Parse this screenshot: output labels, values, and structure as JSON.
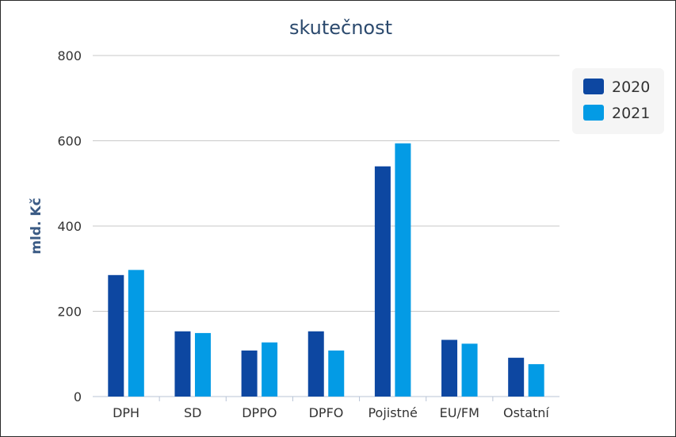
{
  "chart_data": {
    "type": "bar",
    "title": "skutečnost",
    "xlabel": "",
    "ylabel": "mld. Kč",
    "ylim": [
      0,
      800
    ],
    "yticks": [
      0,
      200,
      400,
      600,
      800
    ],
    "grid": true,
    "legend_position": "top-right",
    "categories": [
      "DPH",
      "SD",
      "DPPO",
      "DPFO",
      "Pojistné",
      "EU/FM",
      "Ostatní"
    ],
    "series": [
      {
        "name": "2020",
        "color": "#0d47a1",
        "values": [
          285,
          153,
          108,
          153,
          540,
          133,
          91
        ]
      },
      {
        "name": "2021",
        "color": "#039be5",
        "values": [
          297,
          149,
          127,
          108,
          594,
          124,
          76
        ]
      }
    ]
  }
}
